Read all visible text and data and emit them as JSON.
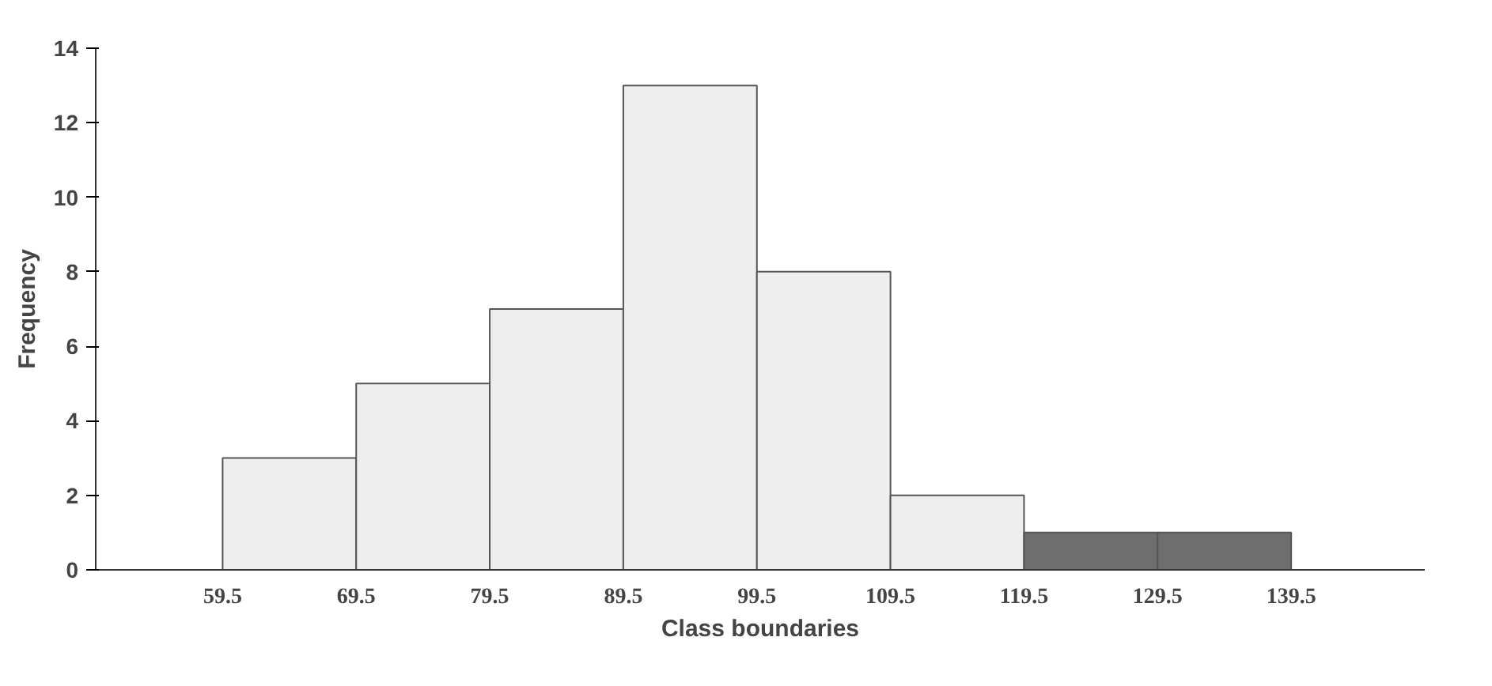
{
  "chart_data": {
    "type": "histogram",
    "xlabel": "Class boundaries",
    "ylabel": "Frequency",
    "bins": [
      59.5,
      69.5,
      79.5,
      89.5,
      99.5,
      109.5,
      119.5,
      129.5,
      139.5
    ],
    "values": [
      3,
      5,
      7,
      13,
      8,
      2,
      1,
      1
    ],
    "colors": [
      "#eeeeee",
      "#eeeeee",
      "#eeeeee",
      "#eeeeee",
      "#eeeeee",
      "#eeeeee",
      "#6e6e6e",
      "#6e6e6e"
    ],
    "xlim": [
      50,
      149.5
    ],
    "xticks": [
      59.5,
      69.5,
      79.5,
      89.5,
      99.5,
      109.5,
      119.5,
      129.5,
      139.5
    ],
    "ylim": [
      0,
      14
    ],
    "yticks": [
      0,
      2,
      4,
      6,
      8,
      10,
      12,
      14
    ],
    "grid": false
  }
}
